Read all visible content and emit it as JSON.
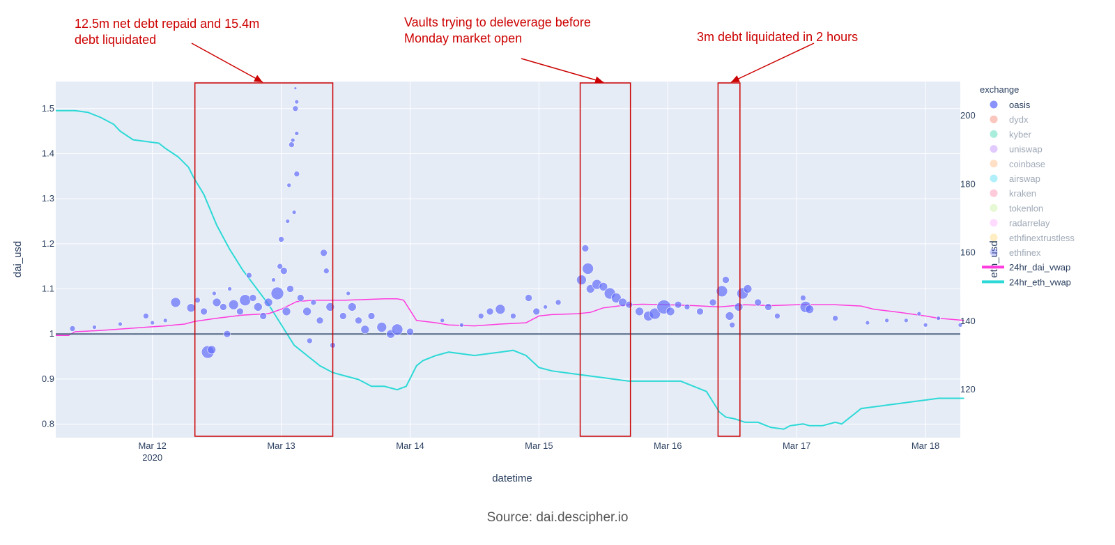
{
  "chart_data": {
    "type": "scatter",
    "x_dates": [
      "Mar 12",
      "Mar 13",
      "Mar 14",
      "Mar 15",
      "Mar 16",
      "Mar 17",
      "Mar 18"
    ],
    "x_year": "2020",
    "xlabel": "datetime",
    "ylabel_left": "dai_usd",
    "ylabel_right": "eth_usd",
    "ylim_left": [
      0.77,
      1.56
    ],
    "ylim_right": [
      106,
      210
    ],
    "y_ticks_left": [
      {
        "v": 0.8,
        "label": "0.8"
      },
      {
        "v": 0.9,
        "label": "0.9"
      },
      {
        "v": 1.0,
        "label": "1"
      },
      {
        "v": 1.1,
        "label": "1.1"
      },
      {
        "v": 1.2,
        "label": "1.2"
      },
      {
        "v": 1.3,
        "label": "1.3"
      },
      {
        "v": 1.4,
        "label": "1.4"
      },
      {
        "v": 1.5,
        "label": "1.5"
      }
    ],
    "y_ticks_right": [
      {
        "v": 120,
        "label": "120"
      },
      {
        "v": 140,
        "label": "140"
      },
      {
        "v": 160,
        "label": "160"
      },
      {
        "v": 180,
        "label": "180"
      },
      {
        "v": 200,
        "label": "200"
      }
    ],
    "reference_line": 1.0,
    "legend_title": "exchange",
    "legend_position": "right",
    "legend": [
      {
        "label": "oasis",
        "color": "#636efa",
        "kind": "marker",
        "active": true
      },
      {
        "label": "dydx",
        "color": "#ef553b",
        "kind": "marker",
        "active": false
      },
      {
        "label": "kyber",
        "color": "#00cc96",
        "kind": "marker",
        "active": false
      },
      {
        "label": "uniswap",
        "color": "#ab63fa",
        "kind": "marker",
        "active": false
      },
      {
        "label": "coinbase",
        "color": "#ffa15a",
        "kind": "marker",
        "active": false
      },
      {
        "label": "airswap",
        "color": "#19d3f3",
        "kind": "marker",
        "active": false
      },
      {
        "label": "kraken",
        "color": "#ff6692",
        "kind": "marker",
        "active": false
      },
      {
        "label": "tokenlon",
        "color": "#b6e880",
        "kind": "marker",
        "active": false
      },
      {
        "label": "radarrelay",
        "color": "#ff97ff",
        "kind": "marker",
        "active": false
      },
      {
        "label": "ethfinextrustless",
        "color": "#fecb52",
        "kind": "marker",
        "active": false
      },
      {
        "label": "ethfinex",
        "color": "#636efa",
        "kind": "marker",
        "active": false
      },
      {
        "label": "24hr_dai_vwap",
        "color": "#ff3bde",
        "kind": "line",
        "active": true
      },
      {
        "label": "24hr_eth_vwap",
        "color": "#2cd9d6",
        "kind": "line",
        "active": true
      }
    ],
    "series": [
      {
        "name": "24hr_eth_vwap",
        "axis": "right",
        "x": [
          11.25,
          11.4,
          11.5,
          11.6,
          11.7,
          11.75,
          11.85,
          11.95,
          12.05,
          12.1,
          12.2,
          12.28,
          12.32,
          12.4,
          12.5,
          12.6,
          12.7,
          12.8,
          12.9,
          13.0,
          13.1,
          13.2,
          13.3,
          13.4,
          13.5,
          13.6,
          13.7,
          13.8,
          13.9,
          13.97,
          14.05,
          14.1,
          14.2,
          14.3,
          14.4,
          14.5,
          14.6,
          14.7,
          14.8,
          14.9,
          15.0,
          15.1,
          15.3,
          15.5,
          15.6,
          15.7,
          15.8,
          15.9,
          16.0,
          16.1,
          16.2,
          16.3,
          16.4,
          16.45,
          16.52,
          16.6,
          16.7,
          16.8,
          16.9,
          16.95,
          17.05,
          17.1,
          17.2,
          17.3,
          17.35,
          17.45,
          17.5,
          17.6,
          17.7,
          17.8,
          17.9,
          18.0,
          18.1,
          18.2,
          18.3
        ],
        "y": [
          201.5,
          201.5,
          201.0,
          199.5,
          197.5,
          195.5,
          193.0,
          192.5,
          192.0,
          190.5,
          188.0,
          185.0,
          182.0,
          177.0,
          168.0,
          161.0,
          155.0,
          150.0,
          145.0,
          139.0,
          133.0,
          130.0,
          127.0,
          125.0,
          124.0,
          123.0,
          121.0,
          121.0,
          120.0,
          121.0,
          127.0,
          128.5,
          130.0,
          131.0,
          130.5,
          130.0,
          130.5,
          131.0,
          131.5,
          130.0,
          126.5,
          125.5,
          124.5,
          123.5,
          123.0,
          122.5,
          122.5,
          122.5,
          122.5,
          122.5,
          121.0,
          119.5,
          113.5,
          112.0,
          111.5,
          110.5,
          110.5,
          109.0,
          108.5,
          109.5,
          110.0,
          109.5,
          109.5,
          110.5,
          110.0,
          113.0,
          114.5,
          115.0,
          115.5,
          116.0,
          116.5,
          117.0,
          117.5,
          117.5,
          117.5
        ]
      },
      {
        "name": "24hr_dai_vwap",
        "axis": "left",
        "x": [
          11.25,
          11.35,
          11.4,
          11.6,
          11.8,
          11.95,
          12.1,
          12.25,
          12.33,
          12.5,
          12.7,
          12.9,
          13.0,
          13.12,
          13.25,
          13.5,
          13.6,
          13.8,
          13.9,
          13.95,
          14.05,
          14.2,
          14.3,
          14.5,
          14.7,
          14.9,
          15.0,
          15.1,
          15.3,
          15.4,
          15.5,
          15.7,
          15.8,
          16.0,
          16.2,
          16.4,
          16.6,
          16.8,
          17.0,
          17.3,
          17.5,
          17.6,
          17.8,
          17.95,
          18.0,
          18.1,
          18.3
        ],
        "y": [
          0.997,
          0.997,
          1.005,
          1.008,
          1.012,
          1.015,
          1.018,
          1.022,
          1.028,
          1.035,
          1.042,
          1.045,
          1.055,
          1.072,
          1.075,
          1.075,
          1.076,
          1.078,
          1.078,
          1.075,
          1.03,
          1.025,
          1.02,
          1.018,
          1.022,
          1.025,
          1.04,
          1.043,
          1.045,
          1.048,
          1.058,
          1.065,
          1.066,
          1.065,
          1.063,
          1.06,
          1.065,
          1.063,
          1.065,
          1.065,
          1.062,
          1.055,
          1.048,
          1.042,
          1.04,
          1.035,
          1.03
        ]
      },
      {
        "name": "oasis",
        "axis": "left",
        "points": [
          {
            "x": 11.38,
            "y": 1.012,
            "s": 4
          },
          {
            "x": 11.55,
            "y": 1.015,
            "s": 3
          },
          {
            "x": 11.75,
            "y": 1.022,
            "s": 3
          },
          {
            "x": 11.95,
            "y": 1.04,
            "s": 4
          },
          {
            "x": 12.0,
            "y": 1.025,
            "s": 3
          },
          {
            "x": 12.1,
            "y": 1.03,
            "s": 3
          },
          {
            "x": 12.18,
            "y": 1.07,
            "s": 7
          },
          {
            "x": 12.3,
            "y": 1.058,
            "s": 6
          },
          {
            "x": 12.35,
            "y": 1.075,
            "s": 4
          },
          {
            "x": 12.4,
            "y": 1.05,
            "s": 5
          },
          {
            "x": 12.43,
            "y": 0.96,
            "s": 9
          },
          {
            "x": 12.46,
            "y": 0.965,
            "s": 6
          },
          {
            "x": 12.48,
            "y": 1.09,
            "s": 3
          },
          {
            "x": 12.5,
            "y": 1.07,
            "s": 6
          },
          {
            "x": 12.55,
            "y": 1.06,
            "s": 5
          },
          {
            "x": 12.58,
            "y": 1.0,
            "s": 5
          },
          {
            "x": 12.6,
            "y": 1.1,
            "s": 3
          },
          {
            "x": 12.63,
            "y": 1.065,
            "s": 7
          },
          {
            "x": 12.68,
            "y": 1.05,
            "s": 5
          },
          {
            "x": 12.72,
            "y": 1.075,
            "s": 8
          },
          {
            "x": 12.75,
            "y": 1.13,
            "s": 4
          },
          {
            "x": 12.78,
            "y": 1.08,
            "s": 5
          },
          {
            "x": 12.82,
            "y": 1.06,
            "s": 6
          },
          {
            "x": 12.86,
            "y": 1.04,
            "s": 5
          },
          {
            "x": 12.9,
            "y": 1.07,
            "s": 6
          },
          {
            "x": 12.94,
            "y": 1.12,
            "s": 3
          },
          {
            "x": 12.97,
            "y": 1.09,
            "s": 9
          },
          {
            "x": 12.99,
            "y": 1.15,
            "s": 4
          },
          {
            "x": 13.0,
            "y": 1.21,
            "s": 4
          },
          {
            "x": 13.02,
            "y": 1.14,
            "s": 5
          },
          {
            "x": 13.04,
            "y": 1.05,
            "s": 6
          },
          {
            "x": 13.05,
            "y": 1.25,
            "s": 3
          },
          {
            "x": 13.06,
            "y": 1.33,
            "s": 3
          },
          {
            "x": 13.07,
            "y": 1.1,
            "s": 5
          },
          {
            "x": 13.08,
            "y": 1.42,
            "s": 4
          },
          {
            "x": 13.09,
            "y": 1.43,
            "s": 3
          },
          {
            "x": 13.1,
            "y": 1.27,
            "s": 3
          },
          {
            "x": 13.11,
            "y": 1.5,
            "s": 4
          },
          {
            "x": 13.11,
            "y": 1.545,
            "s": 2
          },
          {
            "x": 13.12,
            "y": 1.515,
            "s": 3
          },
          {
            "x": 13.12,
            "y": 1.445,
            "s": 3
          },
          {
            "x": 13.12,
            "y": 1.355,
            "s": 4
          },
          {
            "x": 13.15,
            "y": 1.08,
            "s": 5
          },
          {
            "x": 13.2,
            "y": 1.05,
            "s": 6
          },
          {
            "x": 13.22,
            "y": 0.985,
            "s": 4
          },
          {
            "x": 13.25,
            "y": 1.07,
            "s": 4
          },
          {
            "x": 13.3,
            "y": 1.03,
            "s": 5
          },
          {
            "x": 13.33,
            "y": 1.18,
            "s": 5
          },
          {
            "x": 13.35,
            "y": 1.14,
            "s": 4
          },
          {
            "x": 13.38,
            "y": 1.06,
            "s": 6
          },
          {
            "x": 13.4,
            "y": 0.975,
            "s": 4
          },
          {
            "x": 13.48,
            "y": 1.04,
            "s": 5
          },
          {
            "x": 13.52,
            "y": 1.09,
            "s": 3
          },
          {
            "x": 13.55,
            "y": 1.06,
            "s": 6
          },
          {
            "x": 13.6,
            "y": 1.03,
            "s": 5
          },
          {
            "x": 13.65,
            "y": 1.01,
            "s": 6
          },
          {
            "x": 13.7,
            "y": 1.04,
            "s": 5
          },
          {
            "x": 13.78,
            "y": 1.015,
            "s": 7
          },
          {
            "x": 13.85,
            "y": 1.0,
            "s": 6
          },
          {
            "x": 13.9,
            "y": 1.01,
            "s": 8
          },
          {
            "x": 14.0,
            "y": 1.005,
            "s": 5
          },
          {
            "x": 14.25,
            "y": 1.03,
            "s": 3
          },
          {
            "x": 14.4,
            "y": 1.02,
            "s": 3
          },
          {
            "x": 14.55,
            "y": 1.04,
            "s": 4
          },
          {
            "x": 14.62,
            "y": 1.05,
            "s": 5
          },
          {
            "x": 14.7,
            "y": 1.055,
            "s": 7
          },
          {
            "x": 14.8,
            "y": 1.04,
            "s": 4
          },
          {
            "x": 14.92,
            "y": 1.08,
            "s": 5
          },
          {
            "x": 14.98,
            "y": 1.05,
            "s": 5
          },
          {
            "x": 15.05,
            "y": 1.06,
            "s": 3
          },
          {
            "x": 15.15,
            "y": 1.07,
            "s": 4
          },
          {
            "x": 15.33,
            "y": 1.12,
            "s": 7
          },
          {
            "x": 15.36,
            "y": 1.19,
            "s": 5
          },
          {
            "x": 15.38,
            "y": 1.145,
            "s": 8
          },
          {
            "x": 15.4,
            "y": 1.1,
            "s": 6
          },
          {
            "x": 15.45,
            "y": 1.11,
            "s": 7
          },
          {
            "x": 15.5,
            "y": 1.105,
            "s": 6
          },
          {
            "x": 15.55,
            "y": 1.09,
            "s": 8
          },
          {
            "x": 15.6,
            "y": 1.08,
            "s": 7
          },
          {
            "x": 15.65,
            "y": 1.07,
            "s": 6
          },
          {
            "x": 15.7,
            "y": 1.065,
            "s": 5
          },
          {
            "x": 15.78,
            "y": 1.05,
            "s": 6
          },
          {
            "x": 15.85,
            "y": 1.04,
            "s": 7
          },
          {
            "x": 15.9,
            "y": 1.045,
            "s": 8
          },
          {
            "x": 15.97,
            "y": 1.06,
            "s": 10
          },
          {
            "x": 16.02,
            "y": 1.05,
            "s": 6
          },
          {
            "x": 16.08,
            "y": 1.065,
            "s": 5
          },
          {
            "x": 16.15,
            "y": 1.06,
            "s": 4
          },
          {
            "x": 16.25,
            "y": 1.05,
            "s": 5
          },
          {
            "x": 16.35,
            "y": 1.07,
            "s": 5
          },
          {
            "x": 16.42,
            "y": 1.095,
            "s": 8
          },
          {
            "x": 16.45,
            "y": 1.12,
            "s": 5
          },
          {
            "x": 16.48,
            "y": 1.04,
            "s": 6
          },
          {
            "x": 16.5,
            "y": 1.02,
            "s": 4
          },
          {
            "x": 16.55,
            "y": 1.06,
            "s": 6
          },
          {
            "x": 16.58,
            "y": 1.09,
            "s": 8
          },
          {
            "x": 16.62,
            "y": 1.1,
            "s": 6
          },
          {
            "x": 16.7,
            "y": 1.07,
            "s": 5
          },
          {
            "x": 16.78,
            "y": 1.06,
            "s": 5
          },
          {
            "x": 16.85,
            "y": 1.04,
            "s": 4
          },
          {
            "x": 17.05,
            "y": 1.08,
            "s": 4
          },
          {
            "x": 17.07,
            "y": 1.06,
            "s": 8
          },
          {
            "x": 17.1,
            "y": 1.055,
            "s": 6
          },
          {
            "x": 17.3,
            "y": 1.035,
            "s": 4
          },
          {
            "x": 17.55,
            "y": 1.025,
            "s": 3
          },
          {
            "x": 17.7,
            "y": 1.03,
            "s": 3
          },
          {
            "x": 17.85,
            "y": 1.03,
            "s": 3
          },
          {
            "x": 17.95,
            "y": 1.045,
            "s": 3
          },
          {
            "x": 18.0,
            "y": 1.02,
            "s": 3
          },
          {
            "x": 18.1,
            "y": 1.035,
            "s": 3
          },
          {
            "x": 18.27,
            "y": 1.02,
            "s": 3
          }
        ]
      }
    ],
    "annotations": [
      {
        "line1": "12.5m net debt repaid and 15.4m",
        "line2": "debt liquidated",
        "box": [
          12.33,
          13.4
        ]
      },
      {
        "line1": "Vaults trying to deleverage before",
        "line2": "Monday market open",
        "box": [
          15.32,
          15.71
        ]
      },
      {
        "line1": "3m debt liquidated in 2 hours",
        "line2": "",
        "box": [
          16.39,
          16.56
        ]
      }
    ],
    "source": "Source: dai.descipher.io",
    "colors": {
      "plot_bg": "#e5ecf6",
      "grid": "#ffffff",
      "oasis": "#636efa",
      "dai_vwap": "#ff3bde",
      "eth_vwap": "#2cd9d6",
      "reference": "#506784",
      "annotation": "#cc0000"
    }
  }
}
